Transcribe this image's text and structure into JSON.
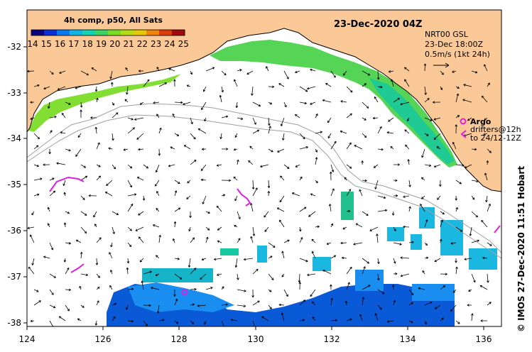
{
  "title": "23-Dec-2020 04Z",
  "colorbar": {
    "title": "4h comp, p50, All Sats",
    "ticks": [
      "14",
      "15",
      "16",
      "17",
      "18",
      "19",
      "20",
      "21",
      "22",
      "23",
      "24",
      "25"
    ],
    "colors": [
      "#08007a",
      "#0a2fd8",
      "#0a78f0",
      "#12b4e6",
      "#14d2b4",
      "#3cd264",
      "#78dc28",
      "#b4dc14",
      "#e6c80a",
      "#f0820a",
      "#dc3c0a",
      "#a00a0a"
    ]
  },
  "xaxis": {
    "ticks": [
      "124",
      "126",
      "128",
      "130",
      "132",
      "134",
      "136"
    ]
  },
  "yaxis": {
    "ticks": [
      "-32",
      "-33",
      "-34",
      "-35",
      "-36",
      "-37",
      "-38"
    ]
  },
  "current_legend": {
    "line1": "NRT00 GSL",
    "line2": "23-Dec 18:00Z",
    "line3": "0.5m/s (1kt 24h)"
  },
  "argo_legend": {
    "label": "Argo"
  },
  "drifter_legend": {
    "line1": "drifters@12h",
    "line2": "to 24/12-12Z"
  },
  "credit": "© IMOS 27-Dec-2020 11:51 Hobart",
  "colors": {
    "land": "#fbc998",
    "coast_outline": "#000000",
    "drifter": "#e020e0",
    "contour": "#a0a0a0"
  }
}
